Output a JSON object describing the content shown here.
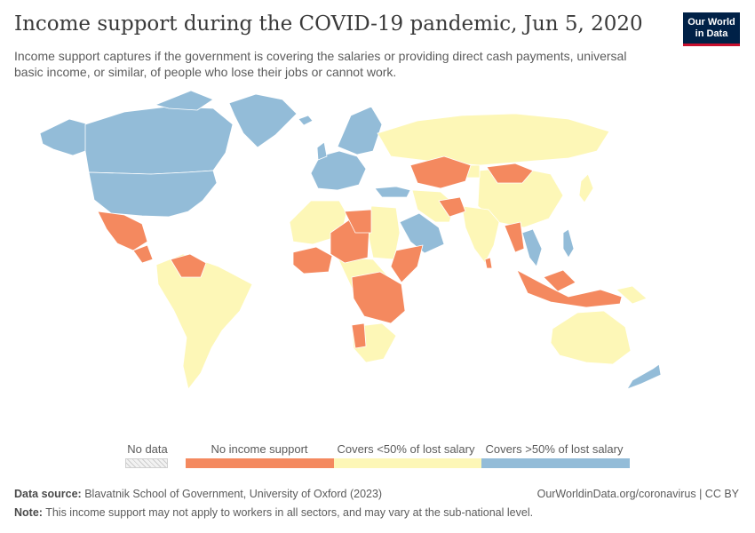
{
  "header": {
    "title": "Income support during the COVID-19 pandemic, Jun 5, 2020",
    "subtitle": "Income support captures if the government is covering the salaries or providing direct cash payments, universal basic income, or similar, of people who lose their jobs or cannot work.",
    "logo_line1": "Our World",
    "logo_line2": "in Data"
  },
  "colors": {
    "no_support": "#f4895f",
    "under_50": "#fdf7b7",
    "over_50": "#93bcd8",
    "no_data": "#eeeeee"
  },
  "legend": {
    "no_data": "No data",
    "no_support": "No income support",
    "under_50": "Covers <50% of lost salary",
    "over_50": "Covers >50% of lost salary"
  },
  "footer": {
    "source_label": "Data source:",
    "source_text": "Blavatnik School of Government, University of Oxford (2023)",
    "url_text": "OurWorldinData.org/coronavirus | CC BY",
    "note_label": "Note:",
    "note_text": "This income support may not apply to workers in all sectors, and may vary at the sub-national level."
  }
}
